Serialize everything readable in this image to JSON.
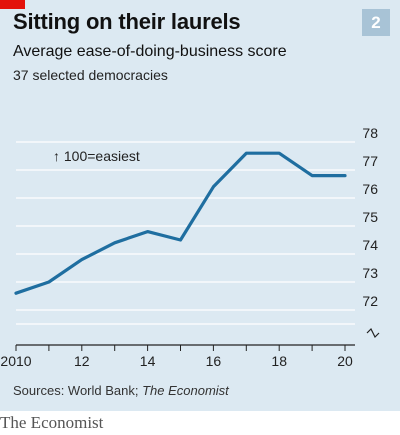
{
  "header": {
    "badge": "2",
    "title": "Sitting on their laurels",
    "subtitle": "Average ease-of-doing-business score",
    "subsubtitle": "37 selected democracies"
  },
  "source": {
    "prefix": "Sources: World Bank; ",
    "italic": "The Economist"
  },
  "footer": "The Economist",
  "colors": {
    "line": "#1f6ea0",
    "background": "#dce9f2",
    "accent": "#e3120b",
    "badge": "#a8c3d6"
  },
  "chart_data": {
    "type": "line",
    "title": "Sitting on their laurels",
    "subtitle": "Average ease-of-doing-business score",
    "annotation": "↑ 100=easiest",
    "x": [
      2010,
      2011,
      2012,
      2013,
      2014,
      2015,
      2016,
      2017,
      2018,
      2019,
      2020
    ],
    "series": [
      {
        "values": [
          72.6,
          73.0,
          73.8,
          74.4,
          74.8,
          74.5,
          76.4,
          77.6,
          77.6,
          76.8,
          76.8
        ]
      }
    ],
    "x_ticks": [
      "2010",
      "12",
      "14",
      "16",
      "18",
      "20"
    ],
    "x_tick_values": [
      2010,
      2012,
      2014,
      2016,
      2018,
      2020
    ],
    "y_ticks": [
      "72",
      "73",
      "74",
      "75",
      "76",
      "77",
      "78"
    ],
    "y_tick_values": [
      72,
      73,
      74,
      75,
      76,
      77,
      78
    ],
    "xlim": [
      2010,
      2020
    ],
    "ylim": [
      72,
      78
    ],
    "y_axis_break": true,
    "grid": true,
    "y_axis_side": "right"
  }
}
